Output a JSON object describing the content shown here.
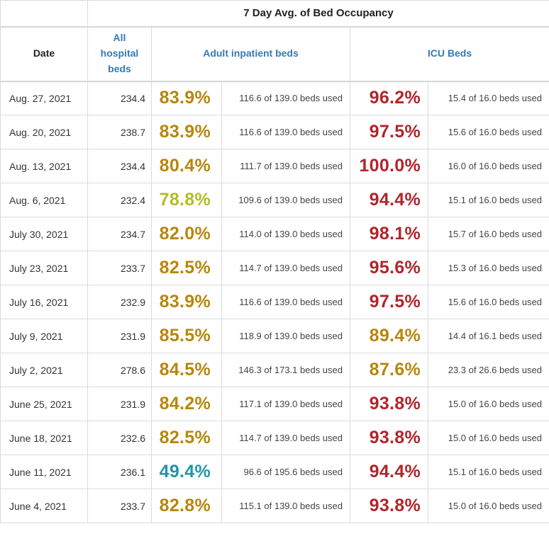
{
  "table": {
    "title": "7 Day Avg. of Bed Occupancy",
    "columns": {
      "date": "Date",
      "all_hospital_beds": "All hospital beds",
      "adult_inpatient_beds": "Adult inpatient beds",
      "icu_beds": "ICU Beds"
    },
    "palette": {
      "gold": "#b8860b",
      "green": "#b3bd23",
      "teal": "#1f96a8",
      "red": "#b2252b",
      "header_blue": "#337ab7",
      "border": "#dcdcdc"
    },
    "rows": [
      {
        "date": "Aug. 27, 2021",
        "all_beds": "234.4",
        "adult_pct": "83.9%",
        "adult_color": "gold",
        "adult_detail": "116.6 of 139.0 beds used",
        "icu_pct": "96.2%",
        "icu_color": "red",
        "icu_detail": "15.4 of 16.0 beds used"
      },
      {
        "date": "Aug. 20, 2021",
        "all_beds": "238.7",
        "adult_pct": "83.9%",
        "adult_color": "gold",
        "adult_detail": "116.6 of 139.0 beds used",
        "icu_pct": "97.5%",
        "icu_color": "red",
        "icu_detail": "15.6 of 16.0 beds used"
      },
      {
        "date": "Aug. 13, 2021",
        "all_beds": "234.4",
        "adult_pct": "80.4%",
        "adult_color": "gold",
        "adult_detail": "111.7 of 139.0 beds used",
        "icu_pct": "100.0%",
        "icu_color": "red",
        "icu_detail": "16.0 of 16.0 beds used"
      },
      {
        "date": "Aug. 6, 2021",
        "all_beds": "232.4",
        "adult_pct": "78.8%",
        "adult_color": "green",
        "adult_detail": "109.6 of 139.0 beds used",
        "icu_pct": "94.4%",
        "icu_color": "red",
        "icu_detail": "15.1 of 16.0 beds used"
      },
      {
        "date": "July 30, 2021",
        "all_beds": "234.7",
        "adult_pct": "82.0%",
        "adult_color": "gold",
        "adult_detail": "114.0 of 139.0 beds used",
        "icu_pct": "98.1%",
        "icu_color": "red",
        "icu_detail": "15.7 of 16.0 beds used"
      },
      {
        "date": "July 23, 2021",
        "all_beds": "233.7",
        "adult_pct": "82.5%",
        "adult_color": "gold",
        "adult_detail": "114.7 of 139.0 beds used",
        "icu_pct": "95.6%",
        "icu_color": "red",
        "icu_detail": "15.3 of 16.0 beds used"
      },
      {
        "date": "July 16, 2021",
        "all_beds": "232.9",
        "adult_pct": "83.9%",
        "adult_color": "gold",
        "adult_detail": "116.6 of 139.0 beds used",
        "icu_pct": "97.5%",
        "icu_color": "red",
        "icu_detail": "15.6 of 16.0 beds used"
      },
      {
        "date": "July 9, 2021",
        "all_beds": "231.9",
        "adult_pct": "85.5%",
        "adult_color": "gold",
        "adult_detail": "118.9 of 139.0 beds used",
        "icu_pct": "89.4%",
        "icu_color": "gold",
        "icu_detail": "14.4 of 16.1 beds used"
      },
      {
        "date": "July 2, 2021",
        "all_beds": "278.6",
        "adult_pct": "84.5%",
        "adult_color": "gold",
        "adult_detail": "146.3 of 173.1 beds used",
        "icu_pct": "87.6%",
        "icu_color": "gold",
        "icu_detail": "23.3 of 26.6 beds used"
      },
      {
        "date": "June 25, 2021",
        "all_beds": "231.9",
        "adult_pct": "84.2%",
        "adult_color": "gold",
        "adult_detail": "117.1 of 139.0 beds used",
        "icu_pct": "93.8%",
        "icu_color": "red",
        "icu_detail": "15.0 of 16.0 beds used"
      },
      {
        "date": "June 18, 2021",
        "all_beds": "232.6",
        "adult_pct": "82.5%",
        "adult_color": "gold",
        "adult_detail": "114.7 of 139.0 beds used",
        "icu_pct": "93.8%",
        "icu_color": "red",
        "icu_detail": "15.0 of 16.0 beds used"
      },
      {
        "date": "June 11, 2021",
        "all_beds": "236.1",
        "adult_pct": "49.4%",
        "adult_color": "teal",
        "adult_detail": "96.6 of 195.6 beds used",
        "icu_pct": "94.4%",
        "icu_color": "red",
        "icu_detail": "15.1 of 16.0 beds used"
      },
      {
        "date": "June 4, 2021",
        "all_beds": "233.7",
        "adult_pct": "82.8%",
        "adult_color": "gold",
        "adult_detail": "115.1 of 139.0 beds used",
        "icu_pct": "93.8%",
        "icu_color": "red",
        "icu_detail": "15.0 of 16.0 beds used"
      }
    ]
  }
}
